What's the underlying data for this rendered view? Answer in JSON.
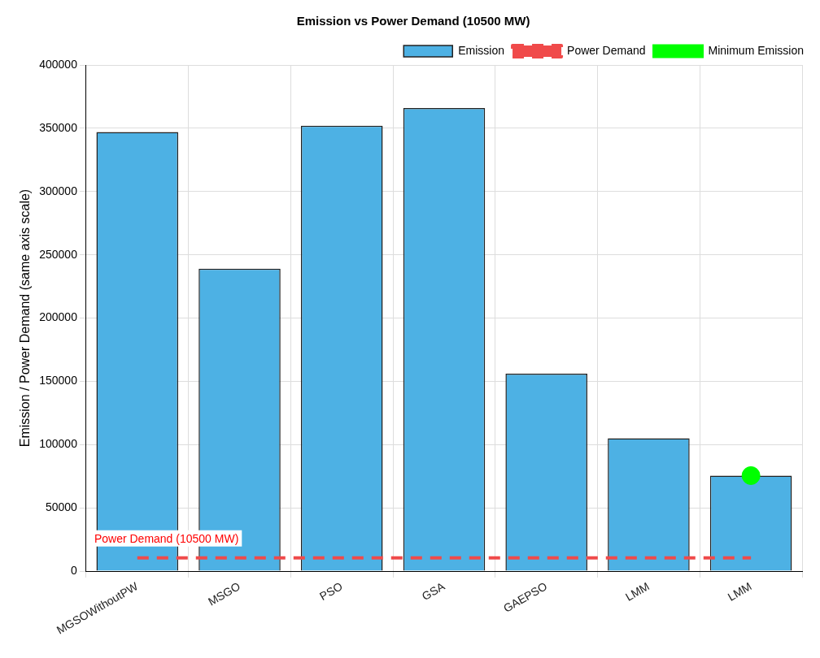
{
  "chart_data": {
    "type": "bar",
    "title": "Emission vs Power Demand (10500 MW)",
    "ylabel": "Emission / Power Demand (same axis scale)",
    "categories": [
      "MGSOWithoutPW",
      "MSGO",
      "PSO",
      "GSA",
      "GAEPSO",
      "LMM",
      "LMM"
    ],
    "series": [
      {
        "name": "Emission",
        "color": "#4db1e4",
        "values": [
          347000,
          239000,
          352000,
          366000,
          156000,
          105000,
          75500
        ]
      },
      {
        "name": "Power Demand",
        "type": "line",
        "color": "#f04a4a",
        "line_style": "dashed",
        "marker": "none",
        "values": [
          10500,
          10500,
          10500,
          10500,
          10500,
          10500,
          10500
        ]
      },
      {
        "name": "Minimum Emission",
        "type": "scatter",
        "color": "#00ff00",
        "marker": "circle",
        "values": [
          null,
          null,
          null,
          null,
          null,
          null,
          75500
        ]
      }
    ],
    "annotations": [
      {
        "text": "Power Demand (10500 MW)",
        "y": 10500
      }
    ],
    "ylim": [
      0,
      400000
    ],
    "yticks": [
      0,
      50000,
      100000,
      150000,
      200000,
      250000,
      300000,
      350000,
      400000
    ],
    "grid": true,
    "legend": "top right"
  }
}
